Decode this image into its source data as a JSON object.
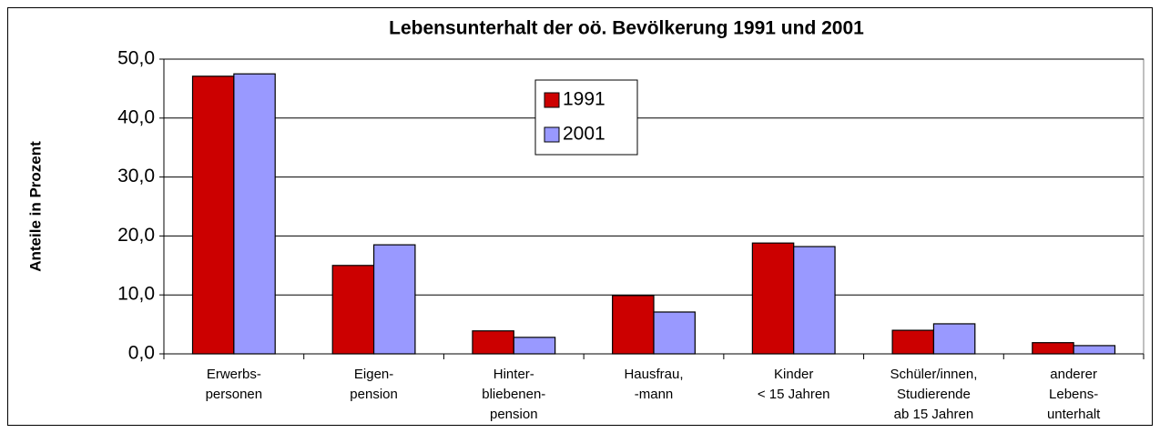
{
  "chart_data": {
    "type": "bar",
    "title": "Lebensunterhalt der oö. Bevölkerung 1991 und 2001",
    "y_label": "Anteile in Prozent",
    "categories": [
      [
        "Erwerbs-",
        "personen"
      ],
      [
        "Eigen-",
        "pension"
      ],
      [
        "Hinter-",
        "bliebenen-",
        "pension"
      ],
      [
        "Hausfrau,",
        "-mann"
      ],
      [
        "Kinder",
        "< 15 Jahren"
      ],
      [
        "Schüler/innen,",
        "Studierende",
        "ab 15 Jahren"
      ],
      [
        "anderer",
        "Lebens-",
        "unterhalt"
      ]
    ],
    "series": [
      {
        "name": "1991",
        "color": "#cc0000",
        "values": [
          47.1,
          15.0,
          3.9,
          9.9,
          18.8,
          4.0,
          1.9
        ]
      },
      {
        "name": "2001",
        "color": "#9999ff",
        "values": [
          47.5,
          18.5,
          2.8,
          7.1,
          18.2,
          5.1,
          1.4
        ]
      }
    ],
    "ylim": [
      0,
      50
    ],
    "yticks": [
      {
        "value": 0,
        "label": "0,0"
      },
      {
        "value": 10,
        "label": "10,0"
      },
      {
        "value": 20,
        "label": "20,0"
      },
      {
        "value": 30,
        "label": "30,0"
      },
      {
        "value": 40,
        "label": "40,0"
      },
      {
        "value": 50,
        "label": "50,0"
      }
    ],
    "grid": true,
    "legend": "top"
  }
}
